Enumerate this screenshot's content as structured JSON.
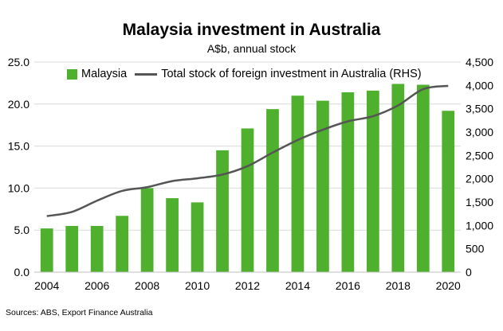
{
  "title": "Malaysia investment in Australia",
  "subtitle": "A$b, annual stock",
  "source": "Sources: ABS, Export Finance Australia",
  "colors": {
    "bar": "#4fb02e",
    "line": "#555555",
    "grid": "#d9d9d9"
  },
  "chart_data": {
    "type": "bar",
    "title": "Malaysia investment in Australia",
    "subtitle": "A$b, annual stock",
    "categories": [
      "2004",
      "2005",
      "2006",
      "2007",
      "2008",
      "2009",
      "2010",
      "2011",
      "2012",
      "2013",
      "2014",
      "2015",
      "2016",
      "2017",
      "2018",
      "2019",
      "2020"
    ],
    "x_tick_labels": [
      "2004",
      "2006",
      "2008",
      "2010",
      "2012",
      "2014",
      "2016",
      "2018",
      "2020"
    ],
    "legend_position": "top-left",
    "grid": true,
    "series": [
      {
        "name": "Malaysia",
        "type": "bar",
        "axis": "left",
        "values": [
          5.2,
          5.5,
          5.5,
          6.7,
          10.0,
          8.8,
          8.3,
          14.5,
          17.1,
          19.4,
          21.0,
          20.4,
          21.4,
          21.6,
          22.4,
          22.3,
          19.2
        ]
      },
      {
        "name": "Total stock of foreign investment in Australia (RHS)",
        "type": "line",
        "axis": "right",
        "values": [
          1200,
          1290,
          1530,
          1740,
          1820,
          1950,
          2010,
          2090,
          2270,
          2560,
          2830,
          3050,
          3230,
          3340,
          3570,
          3920,
          3990
        ]
      }
    ],
    "y_left": {
      "ylim": [
        0,
        25
      ],
      "ticks": [
        "0.0",
        "5.0",
        "10.0",
        "15.0",
        "20.0",
        "25.0"
      ]
    },
    "y_right": {
      "ylim": [
        0,
        4500
      ],
      "ticks": [
        "0",
        "500",
        "1,000",
        "1,500",
        "2,000",
        "2,500",
        "3,000",
        "3,500",
        "4,000",
        "4,500"
      ]
    }
  }
}
